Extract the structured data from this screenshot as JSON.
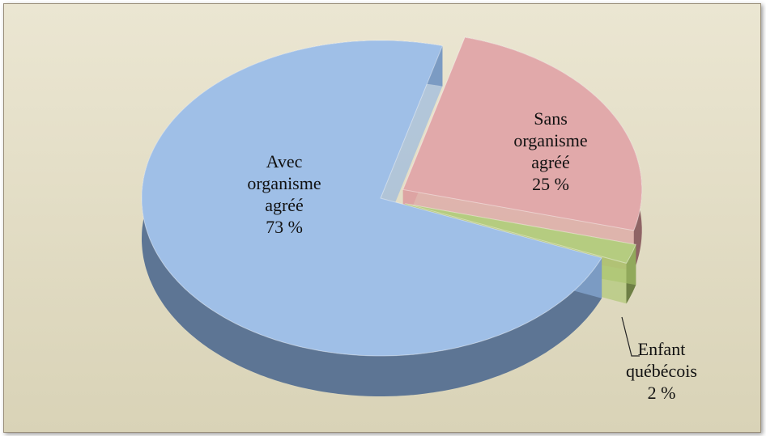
{
  "chart_data": {
    "type": "pie",
    "categories": [
      "Sans organisme agréé",
      "Enfant québécois",
      "Avec organisme agréé"
    ],
    "values": [
      25,
      2,
      73
    ],
    "value_labels": [
      "25 %",
      "2 %",
      "73 %"
    ],
    "colors": [
      "#dc9a9c",
      "#a9c46a",
      "#8fb4e3"
    ]
  }
}
